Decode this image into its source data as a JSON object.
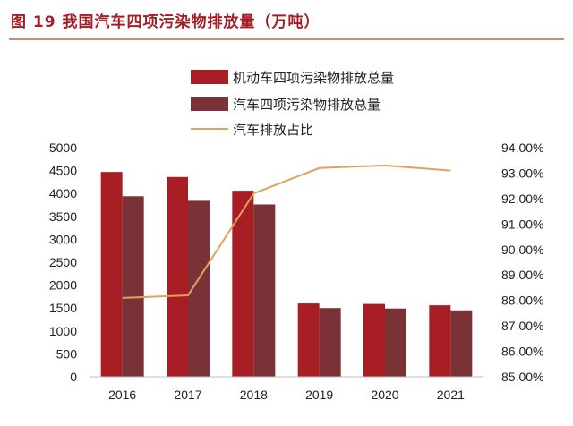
{
  "figure": {
    "title": "图 19  我国汽车四项污染物排放量（万吨）"
  },
  "colors": {
    "title": "#a51d24",
    "rule": "#d58b6a",
    "series_motor": "#a71e24",
    "series_car": "#7a3236",
    "series_ratio": "#e2a15b"
  },
  "chart_data": {
    "type": "bar",
    "categories": [
      "2016",
      "2017",
      "2018",
      "2019",
      "2020",
      "2021"
    ],
    "series": [
      {
        "name": "机动车四项污染物排放总量",
        "type": "bar",
        "axis": "left",
        "values": [
          4470,
          4360,
          4060,
          1600,
          1590,
          1560
        ]
      },
      {
        "name": "汽车四项污染物排放总量",
        "type": "bar",
        "axis": "left",
        "values": [
          3940,
          3840,
          3760,
          1500,
          1490,
          1450
        ]
      },
      {
        "name": "汽车排放占比",
        "type": "line",
        "axis": "right",
        "values": [
          88.1,
          88.2,
          92.2,
          93.2,
          93.3,
          93.1
        ]
      }
    ],
    "y_left": {
      "min": 0,
      "max": 5000,
      "step": 500
    },
    "y_right": {
      "min": 85,
      "max": 94,
      "step": 1,
      "format": "percent_2dp"
    },
    "legend_position": "top",
    "grid": false
  }
}
